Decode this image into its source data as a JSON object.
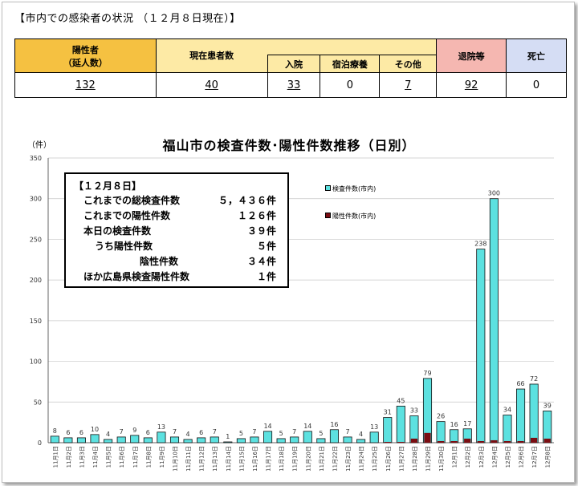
{
  "header": {
    "title": "【市内での感染者の状況 （１２月８日現在）】"
  },
  "summary_table": {
    "positive_label_1": "陽性者",
    "positive_label_2": "（延人数）",
    "current_label": "現在患者数",
    "hospitalized_label": "入院",
    "hotel_label": "宿泊療養",
    "other_label": "その他",
    "discharged_label": "退院等",
    "deaths_label": "死亡",
    "positive_value": "132",
    "current_value": "40",
    "hospitalized_value": "33",
    "hotel_value": "0",
    "other_value": "7",
    "discharged_value": "92",
    "deaths_value": "0",
    "colors": {
      "yellow": "#f5c141",
      "light_yellow": "#fdeaa5",
      "pink": "#f5b7b1",
      "blue": "#d5ddf4"
    }
  },
  "infobox": {
    "date": "【１２月８日】",
    "rows": [
      {
        "label": "これまでの総検査件数",
        "value": "５，４３６件"
      },
      {
        "label": "これまでの陽性件数",
        "value": "１２６件"
      },
      {
        "label": "本日の検査件数",
        "value": "３９件"
      },
      {
        "label": "うち陽性件数",
        "value": "５件"
      },
      {
        "label": "陰性件数",
        "value": "３４件"
      },
      {
        "label": "ほか広島県検査陽性件数",
        "value": "１件"
      }
    ]
  },
  "chart_data": {
    "type": "bar",
    "title": "福山市の検査件数･陽性件数推移（日別）",
    "ylabel": "（件）",
    "ylim": [
      0,
      350
    ],
    "yticks": [
      0,
      50,
      100,
      150,
      200,
      250,
      300,
      350
    ],
    "grid": true,
    "legend_position": "top-right",
    "categories": [
      "11月1日",
      "11月2日",
      "11月3日",
      "11月4日",
      "11月5日",
      "11月6日",
      "11月7日",
      "11月8日",
      "11月9日",
      "11月10日",
      "11月11日",
      "11月12日",
      "11月13日",
      "11月14日",
      "11月15日",
      "11月16日",
      "11月17日",
      "11月18日",
      "11月19日",
      "11月20日",
      "11月21日",
      "11月22日",
      "11月23日",
      "11月24日",
      "11月25日",
      "11月26日",
      "11月27日",
      "11月28日",
      "11月29日",
      "11月30日",
      "12月1日",
      "12月2日",
      "12月3日",
      "12月4日",
      "12月5日",
      "12月6日",
      "12月7日",
      "12月8日"
    ],
    "series": [
      {
        "name": "検査件数(市内)",
        "color": "#5ce1e0",
        "values": [
          8,
          6,
          6,
          10,
          4,
          7,
          9,
          6,
          13,
          7,
          4,
          6,
          7,
          1,
          5,
          7,
          14,
          5,
          7,
          14,
          5,
          16,
          7,
          4,
          13,
          31,
          45,
          33,
          79,
          26,
          16,
          17,
          238,
          300,
          34,
          66,
          72,
          39
        ]
      },
      {
        "name": "陽性件数(市内)",
        "color": "#7b0d12",
        "values": [
          0,
          0,
          0,
          0,
          0,
          0,
          0,
          0,
          0,
          0,
          0,
          0,
          0,
          0,
          0,
          0,
          0,
          0,
          0,
          0,
          0,
          0,
          0,
          0,
          0,
          1,
          1,
          5,
          12,
          2,
          2,
          5,
          2,
          3,
          2,
          2,
          6,
          5
        ]
      }
    ]
  }
}
